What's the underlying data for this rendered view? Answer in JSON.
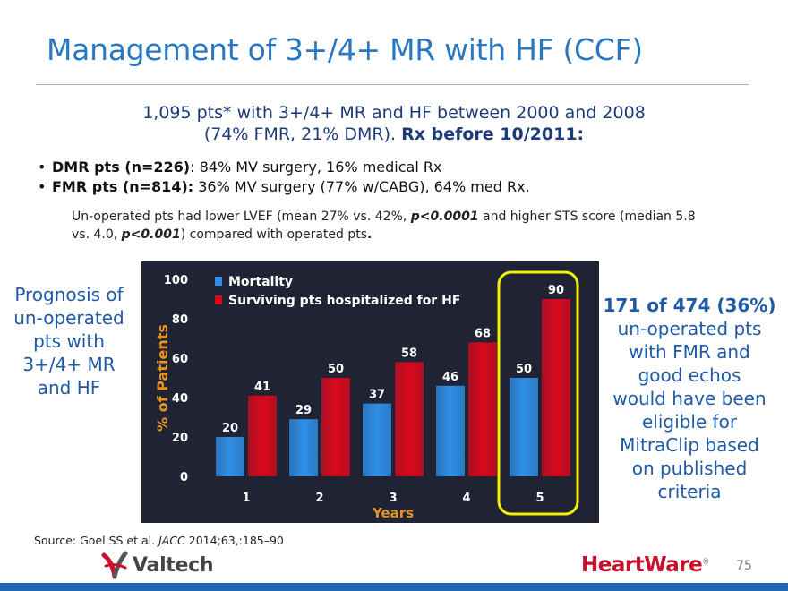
{
  "slide": {
    "title": "Management of 3+/4+ MR with HF (CCF)",
    "subtitle_line1": "1,095 pts* with 3+/4+ MR and HF between 2000 and 2008",
    "subtitle_line2_plain": "(74% FMR, 21% DMR). ",
    "subtitle_line2_bold": "Rx before 10/2011:",
    "bullets": [
      {
        "bold": "DMR pts (n=226)",
        "text": ": 84% MV surgery, 16% medical Rx"
      },
      {
        "bold": "FMR pts (n=814):",
        "text": " 36% MV surgery (77% w/CABG), 64% med Rx."
      }
    ],
    "note": {
      "p1": "Un-operated pts had lower LVEF (mean 27% vs. 42%, ",
      "p2": "p<0.0001",
      "p3": " and higher STS score (median 5.8 vs. 4.0, ",
      "p4": "p<0.001",
      "p5": ") compared with operated pts",
      "p6": "."
    },
    "left_text": [
      "Prognosis of",
      "un-operated",
      "pts with",
      "3+/4+ MR",
      "and HF"
    ],
    "right_text_highlight": "171 of 474 (36%)",
    "right_text": [
      "un-operated pts",
      "with FMR and",
      "good echos",
      "would have been",
      "eligible for",
      "MitraClip based",
      "on published",
      "criteria"
    ],
    "source_plain": "Source: Goel SS et al. ",
    "source_italic": "JACC",
    "source_rest": " 2014;63,:185–90",
    "logo_valtech": "Valtech",
    "logo_heartware": "HeartWare",
    "logo_heartware_mark": "®",
    "page_number": "75"
  },
  "chart_data": {
    "type": "bar",
    "categories": [
      "1",
      "2",
      "3",
      "4",
      "5"
    ],
    "series": [
      {
        "name": "Mortality",
        "values": [
          20,
          29,
          37,
          46,
          50
        ],
        "color": "#2f8fe6"
      },
      {
        "name": "Surviving pts hospitalized for HF",
        "values": [
          41,
          50,
          58,
          68,
          90
        ],
        "color": "#d9091e"
      }
    ],
    "xlabel": "Years",
    "ylabel": "% of Patients",
    "ylim": [
      0,
      100
    ],
    "yticks": [
      "0",
      "20",
      "40",
      "60",
      "80",
      "100"
    ],
    "legend_position": "top-left",
    "highlight_category": "5",
    "highlight_color": "#f2f200",
    "background": "#1f2333",
    "grid": false
  }
}
